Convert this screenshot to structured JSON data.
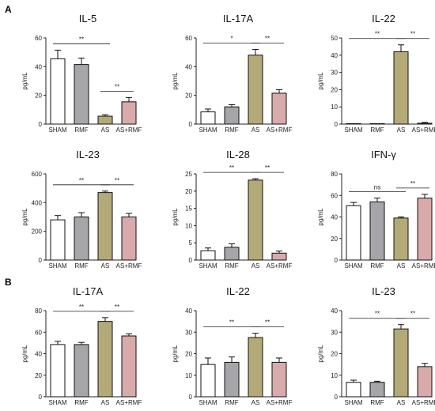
{
  "panel_labels": [
    "A",
    "B"
  ],
  "chart_data": [
    {
      "type": "bar",
      "panel": "A",
      "title": "IL-5",
      "ylabel": "pg/mL",
      "categories": [
        "SHAM",
        "RMF",
        "AS",
        "AS+RMF"
      ],
      "values": [
        45.5,
        41.5,
        5.5,
        15.5
      ],
      "errors": [
        6,
        4.5,
        1,
        3
      ],
      "ylim": [
        0,
        60
      ],
      "yticks": [
        0,
        20,
        40,
        60
      ],
      "colors": [
        "#ffffff",
        "#a5a5aa",
        "#b3aa78",
        "#d9aaaa"
      ],
      "comparisons": [
        {
          "from": 0,
          "to": 2,
          "label": "**"
        },
        {
          "from": 2,
          "to": 3,
          "label": "**"
        }
      ]
    },
    {
      "type": "bar",
      "panel": "A",
      "title": "IL-17A",
      "ylabel": "pg/mL",
      "categories": [
        "SHAM",
        "RMF",
        "AS",
        "AS+RMF"
      ],
      "values": [
        8.5,
        12,
        48,
        21.5
      ],
      "errors": [
        2,
        1.5,
        4,
        2.5
      ],
      "ylim": [
        0,
        60
      ],
      "yticks": [
        0,
        20,
        40,
        60
      ],
      "colors": [
        "#ffffff",
        "#a5a5aa",
        "#b3aa78",
        "#d9aaaa"
      ],
      "comparisons": [
        {
          "from": 0,
          "to": 2,
          "label": "*"
        },
        {
          "from": 2,
          "to": 3,
          "label": "**"
        }
      ]
    },
    {
      "type": "bar",
      "panel": "A",
      "title": "IL-22",
      "ylabel": "pg/mL",
      "categories": [
        "SHAM",
        "RMF",
        "AS",
        "AS+RMF"
      ],
      "values": [
        0,
        0,
        42,
        0.5
      ],
      "errors": [
        0,
        0,
        4,
        0.5
      ],
      "ylim": [
        0,
        50
      ],
      "yticks": [
        0,
        10,
        20,
        30,
        40,
        50
      ],
      "colors": [
        "#ffffff",
        "#a5a5aa",
        "#b3aa78",
        "#d9aaaa"
      ],
      "comparisons": [
        {
          "from": 0,
          "to": 2,
          "label": "**"
        },
        {
          "from": 2,
          "to": 3,
          "label": "**"
        }
      ]
    },
    {
      "type": "bar",
      "panel": "A",
      "title": "IL-23",
      "ylabel": "pg/mL",
      "categories": [
        "SHAM",
        "RMF",
        "AS",
        "AS+RMF"
      ],
      "values": [
        280,
        300,
        470,
        300
      ],
      "errors": [
        30,
        30,
        10,
        25
      ],
      "ylim": [
        0,
        600
      ],
      "yticks": [
        0,
        200,
        400,
        600
      ],
      "colors": [
        "#ffffff",
        "#a5a5aa",
        "#b3aa78",
        "#d9aaaa"
      ],
      "comparisons": [
        {
          "from": 0,
          "to": 2,
          "label": "**"
        },
        {
          "from": 2,
          "to": 3,
          "label": "**"
        }
      ]
    },
    {
      "type": "bar",
      "panel": "A",
      "title": "IL-28",
      "ylabel": "pg/mL",
      "categories": [
        "SHAM",
        "RMF",
        "AS",
        "AS+RMF"
      ],
      "values": [
        2.7,
        3.7,
        23.2,
        2
      ],
      "errors": [
        0.8,
        1,
        0.4,
        0.6
      ],
      "ylim": [
        0,
        25
      ],
      "yticks": [
        0,
        5,
        10,
        15,
        20,
        25
      ],
      "colors": [
        "#ffffff",
        "#a5a5aa",
        "#b3aa78",
        "#d9aaaa"
      ],
      "comparisons": [
        {
          "from": 0,
          "to": 2,
          "label": "**"
        },
        {
          "from": 2,
          "to": 3,
          "label": "**"
        }
      ]
    },
    {
      "type": "bar",
      "panel": "A",
      "title": "IFN-γ",
      "ylabel": "pg/mL",
      "categories": [
        "SHAM",
        "RMF",
        "AS",
        "AS+RMF"
      ],
      "values": [
        50.5,
        54,
        39,
        57.5
      ],
      "errors": [
        3,
        3.5,
        1,
        3.5
      ],
      "ylim": [
        0,
        80
      ],
      "yticks": [
        0,
        20,
        40,
        60,
        80
      ],
      "colors": [
        "#ffffff",
        "#a5a5aa",
        "#b3aa78",
        "#d9aaaa"
      ],
      "comparisons": [
        {
          "from": 0,
          "to": 2,
          "label": "ns"
        },
        {
          "from": 2,
          "to": 3,
          "label": "**"
        }
      ]
    },
    {
      "type": "bar",
      "panel": "B",
      "title": "IL-17A",
      "ylabel": "pg/mL",
      "categories": [
        "SHAM",
        "RMF",
        "AS",
        "AS+RMF"
      ],
      "values": [
        48.5,
        48.5,
        70,
        56.5
      ],
      "errors": [
        3,
        2,
        3.5,
        2
      ],
      "ylim": [
        0,
        80
      ],
      "yticks": [
        0,
        20,
        40,
        60,
        80
      ],
      "colors": [
        "#ffffff",
        "#a5a5aa",
        "#b3aa78",
        "#d9aaaa"
      ],
      "comparisons": [
        {
          "from": 0,
          "to": 2,
          "label": "**"
        },
        {
          "from": 2,
          "to": 3,
          "label": "**"
        }
      ]
    },
    {
      "type": "bar",
      "panel": "B",
      "title": "IL-22",
      "ylabel": "pg/mL",
      "categories": [
        "SHAM",
        "RMF",
        "AS",
        "AS+RMF"
      ],
      "values": [
        15,
        16,
        27.5,
        16
      ],
      "errors": [
        3,
        2.5,
        2,
        2
      ],
      "ylim": [
        0,
        40
      ],
      "yticks": [
        0,
        10,
        20,
        30,
        40
      ],
      "colors": [
        "#ffffff",
        "#a5a5aa",
        "#b3aa78",
        "#d9aaaa"
      ],
      "comparisons": [
        {
          "from": 0,
          "to": 2,
          "label": "**"
        },
        {
          "from": 2,
          "to": 3,
          "label": "**"
        }
      ]
    },
    {
      "type": "bar",
      "panel": "B",
      "title": "IL-23",
      "ylabel": "pg/mL",
      "categories": [
        "SHAM",
        "RMF",
        "AS",
        "AS+RMF"
      ],
      "values": [
        6.7,
        6.7,
        31.5,
        14
      ],
      "errors": [
        1,
        0.5,
        2,
        1.5
      ],
      "ylim": [
        0,
        40
      ],
      "yticks": [
        0,
        10,
        20,
        30,
        40
      ],
      "colors": [
        "#ffffff",
        "#a5a5aa",
        "#b3aa78",
        "#d9aaaa"
      ],
      "comparisons": [
        {
          "from": 0,
          "to": 2,
          "label": "**"
        },
        {
          "from": 2,
          "to": 3,
          "label": "**"
        }
      ]
    }
  ]
}
